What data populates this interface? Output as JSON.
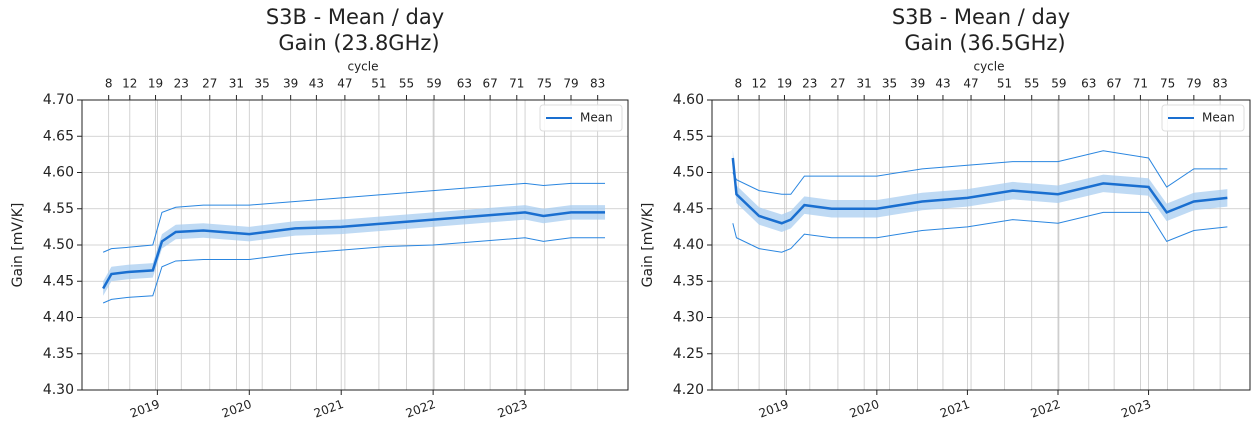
{
  "chart_data": [
    {
      "type": "line",
      "title": "S3B - Mean / day",
      "subtitle": "Gain (23.8GHz)",
      "ylabel": "Gain [mV/K]",
      "x2label": "cycle",
      "x": [
        2018.41,
        2018.5,
        2018.7,
        2018.95,
        2019.05,
        2019.2,
        2019.5,
        2020.0,
        2020.5,
        2021.0,
        2021.5,
        2022.0,
        2022.5,
        2023.0,
        2023.2,
        2023.5,
        2023.87
      ],
      "series": [
        {
          "name": "Mean",
          "color": "#1a6fd0",
          "values": [
            4.44,
            4.46,
            4.463,
            4.465,
            4.505,
            4.518,
            4.52,
            4.515,
            4.523,
            4.525,
            4.53,
            4.535,
            4.54,
            4.545,
            4.54,
            4.545,
            4.545
          ]
        },
        {
          "color": "#2a86e0",
          "values": [
            4.49,
            4.495,
            4.497,
            4.5,
            4.545,
            4.552,
            4.555,
            4.555,
            4.56,
            4.565,
            4.57,
            4.575,
            4.58,
            4.585,
            4.582,
            4.585,
            4.585
          ]
        },
        {
          "color": "#2a86e0",
          "values": [
            4.42,
            4.425,
            4.428,
            4.43,
            4.47,
            4.478,
            4.48,
            4.48,
            4.488,
            4.493,
            4.498,
            4.5,
            4.505,
            4.51,
            4.505,
            4.51,
            4.51
          ]
        }
      ],
      "band": {
        "color": "#a9cdf0",
        "upper": [
          4.45,
          4.47,
          4.473,
          4.475,
          4.515,
          4.528,
          4.53,
          4.525,
          4.533,
          4.535,
          4.54,
          4.545,
          4.55,
          4.555,
          4.55,
          4.555,
          4.555
        ],
        "lower": [
          4.43,
          4.45,
          4.453,
          4.455,
          4.495,
          4.508,
          4.51,
          4.505,
          4.513,
          4.515,
          4.52,
          4.525,
          4.53,
          4.535,
          4.53,
          4.535,
          4.535
        ]
      },
      "xlim": [
        2018.18,
        2024.12
      ],
      "xticks": [
        2019,
        2020,
        2021,
        2022,
        2023
      ],
      "x2ticks": [
        {
          "value": 2018.47,
          "label": "8"
        },
        {
          "value": 2018.7,
          "label": "12"
        },
        {
          "value": 2018.98,
          "label": "19"
        },
        {
          "value": 2019.26,
          "label": "23"
        },
        {
          "value": 2019.57,
          "label": "27"
        },
        {
          "value": 2019.86,
          "label": "31"
        },
        {
          "value": 2020.14,
          "label": "35"
        },
        {
          "value": 2020.45,
          "label": "39"
        },
        {
          "value": 2020.73,
          "label": "43"
        },
        {
          "value": 2021.04,
          "label": "47"
        },
        {
          "value": 2021.41,
          "label": "51"
        },
        {
          "value": 2021.71,
          "label": "55"
        },
        {
          "value": 2022.01,
          "label": "59"
        },
        {
          "value": 2022.34,
          "label": "63"
        },
        {
          "value": 2022.62,
          "label": "67"
        },
        {
          "value": 2022.91,
          "label": "71"
        },
        {
          "value": 2023.21,
          "label": "75"
        },
        {
          "value": 2023.5,
          "label": "79"
        },
        {
          "value": 2023.79,
          "label": "83"
        }
      ],
      "ylim": [
        4.3,
        4.7
      ],
      "yticks": [
        {
          "value": 4.3,
          "label": "4.30"
        },
        {
          "value": 4.35,
          "label": "4.35"
        },
        {
          "value": 4.4,
          "label": "4.40"
        },
        {
          "value": 4.45,
          "label": "4.45"
        },
        {
          "value": 4.5,
          "label": "4.50"
        },
        {
          "value": 4.55,
          "label": "4.55"
        },
        {
          "value": 4.6,
          "label": "4.60"
        },
        {
          "value": 4.65,
          "label": "4.65"
        },
        {
          "value": 4.7,
          "label": "4.70"
        }
      ],
      "grid": true,
      "legend": "upper right"
    },
    {
      "type": "line",
      "title": "S3B - Mean / day",
      "subtitle": "Gain (36.5GHz)",
      "ylabel": "Gain [mV/K]",
      "x2label": "cycle",
      "x": [
        2018.41,
        2018.45,
        2018.7,
        2018.95,
        2019.05,
        2019.2,
        2019.5,
        2020.0,
        2020.5,
        2021.0,
        2021.5,
        2022.0,
        2022.5,
        2023.0,
        2023.2,
        2023.5,
        2023.87
      ],
      "series": [
        {
          "name": "Mean",
          "color": "#1a6fd0",
          "values": [
            4.52,
            4.47,
            4.44,
            4.43,
            4.435,
            4.455,
            4.45,
            4.45,
            4.46,
            4.465,
            4.475,
            4.47,
            4.485,
            4.48,
            4.445,
            4.46,
            4.465
          ]
        },
        {
          "color": "#2a86e0",
          "values": [
            4.5,
            4.49,
            4.475,
            4.47,
            4.47,
            4.495,
            4.495,
            4.495,
            4.505,
            4.51,
            4.515,
            4.515,
            4.53,
            4.52,
            4.48,
            4.505,
            4.505
          ]
        },
        {
          "color": "#2a86e0",
          "values": [
            4.43,
            4.41,
            4.395,
            4.39,
            4.395,
            4.415,
            4.41,
            4.41,
            4.42,
            4.425,
            4.435,
            4.43,
            4.445,
            4.445,
            4.405,
            4.42,
            4.425
          ]
        }
      ],
      "band": {
        "color": "#a9cdf0",
        "upper": [
          4.532,
          4.482,
          4.452,
          4.442,
          4.447,
          4.467,
          4.462,
          4.462,
          4.472,
          4.477,
          4.487,
          4.482,
          4.497,
          4.492,
          4.457,
          4.472,
          4.477
        ],
        "lower": [
          4.508,
          4.458,
          4.428,
          4.418,
          4.423,
          4.443,
          4.438,
          4.438,
          4.448,
          4.453,
          4.463,
          4.458,
          4.473,
          4.468,
          4.433,
          4.448,
          4.453
        ]
      },
      "xlim": [
        2018.18,
        2024.12
      ],
      "xticks": [
        2019,
        2020,
        2021,
        2022,
        2023
      ],
      "x2ticks": [
        {
          "value": 2018.47,
          "label": "8"
        },
        {
          "value": 2018.7,
          "label": "12"
        },
        {
          "value": 2018.98,
          "label": "19"
        },
        {
          "value": 2019.26,
          "label": "23"
        },
        {
          "value": 2019.57,
          "label": "27"
        },
        {
          "value": 2019.86,
          "label": "31"
        },
        {
          "value": 2020.14,
          "label": "35"
        },
        {
          "value": 2020.45,
          "label": "39"
        },
        {
          "value": 2020.73,
          "label": "43"
        },
        {
          "value": 2021.04,
          "label": "47"
        },
        {
          "value": 2021.41,
          "label": "51"
        },
        {
          "value": 2021.71,
          "label": "55"
        },
        {
          "value": 2022.01,
          "label": "59"
        },
        {
          "value": 2022.34,
          "label": "63"
        },
        {
          "value": 2022.62,
          "label": "67"
        },
        {
          "value": 2022.91,
          "label": "71"
        },
        {
          "value": 2023.21,
          "label": "75"
        },
        {
          "value": 2023.5,
          "label": "79"
        },
        {
          "value": 2023.79,
          "label": "83"
        }
      ],
      "ylim": [
        4.2,
        4.6
      ],
      "yticks": [
        {
          "value": 4.2,
          "label": "4.20"
        },
        {
          "value": 4.25,
          "label": "4.25"
        },
        {
          "value": 4.3,
          "label": "4.30"
        },
        {
          "value": 4.35,
          "label": "4.35"
        },
        {
          "value": 4.4,
          "label": "4.40"
        },
        {
          "value": 4.45,
          "label": "4.45"
        },
        {
          "value": 4.5,
          "label": "4.50"
        },
        {
          "value": 4.55,
          "label": "4.55"
        },
        {
          "value": 4.6,
          "label": "4.60"
        }
      ],
      "grid": true,
      "legend": "upper right"
    }
  ]
}
